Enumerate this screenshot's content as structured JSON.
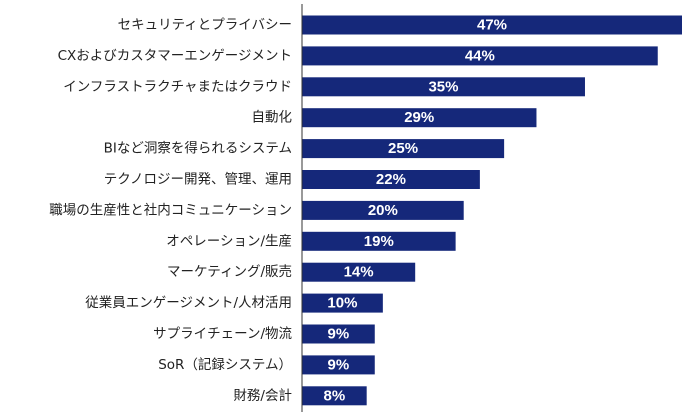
{
  "chart_data": {
    "type": "bar",
    "orientation": "horizontal",
    "categories": [
      "セキュリティとプライバシー",
      "CXおよびカスタマーエンゲージメント",
      "インフラストラクチャまたはクラウド",
      "自動化",
      "BIなど洞察を得られるシステム",
      "テクノロジー開発、管理、運用",
      "職場の生産性と社内コミュニケーション",
      "オペレーション/生産",
      "マーケティング/販売",
      "従業員エンゲージメント/人材活用",
      "サプライチェーン/物流",
      "SoR（記録システム）",
      "財務/会計"
    ],
    "values": [
      47,
      44,
      35,
      29,
      25,
      22,
      20,
      19,
      14,
      10,
      9,
      9,
      8
    ],
    "value_labels": [
      "47%",
      "44%",
      "35%",
      "29%",
      "25%",
      "22%",
      "20%",
      "19%",
      "14%",
      "10%",
      "9%",
      "9%",
      "8%"
    ],
    "unit": "%",
    "xlim": [
      0,
      47
    ],
    "grid": false,
    "legend": "none",
    "bar_color": "#15287a"
  }
}
